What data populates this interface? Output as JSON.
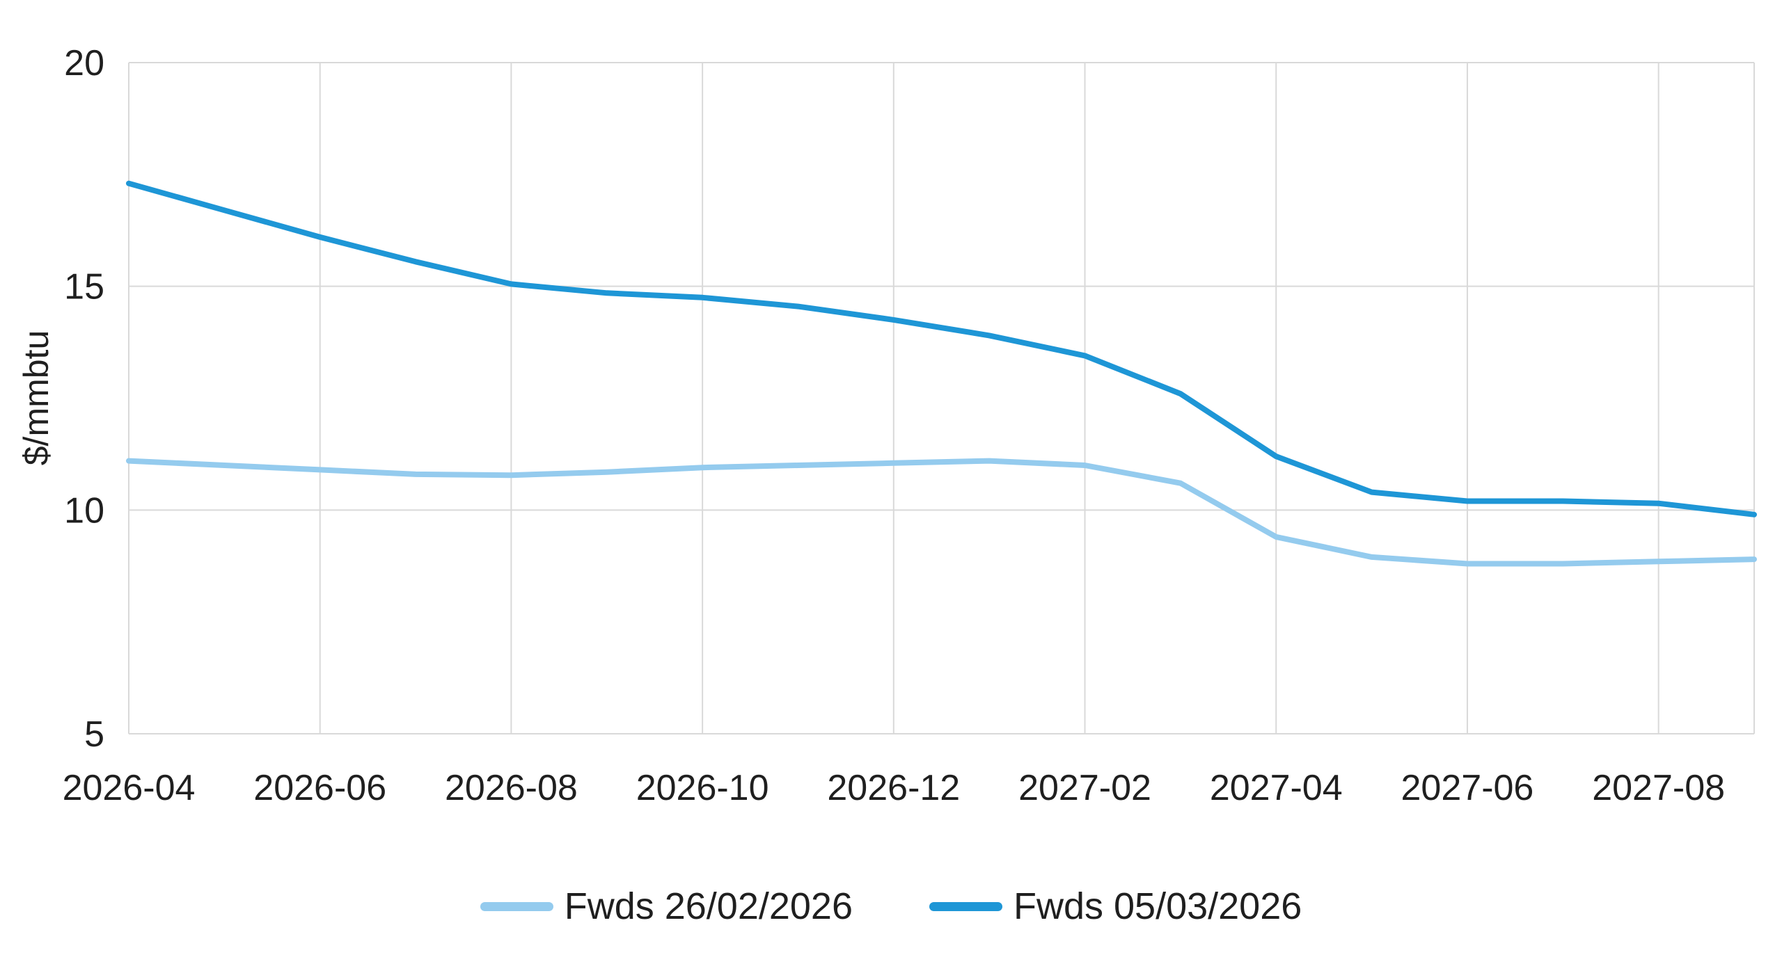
{
  "chart_data": {
    "type": "line",
    "title": "",
    "ylabel": "$/mmbtu",
    "xlabel": "",
    "ylim": [
      5,
      20
    ],
    "yticks": [
      5,
      10,
      15,
      20
    ],
    "grid": true,
    "legend_position": "bottom",
    "grid_color": "#d9d9d9",
    "text_color": "#1f1f1f",
    "background_color": "#ffffff",
    "x": [
      "2026-04",
      "2026-05",
      "2026-06",
      "2026-07",
      "2026-08",
      "2026-09",
      "2026-10",
      "2026-11",
      "2026-12",
      "2027-01",
      "2027-02",
      "2027-03",
      "2027-04",
      "2027-05",
      "2027-06",
      "2027-07",
      "2027-08",
      "2027-09"
    ],
    "xtick_indices": [
      0,
      2,
      4,
      6,
      8,
      10,
      12,
      14,
      16
    ],
    "series": [
      {
        "name": "Fwds 26/02/2026",
        "color": "#94cbee",
        "values": [
          11.1,
          11.0,
          10.9,
          10.8,
          10.78,
          10.85,
          10.95,
          11.0,
          11.05,
          11.1,
          11.0,
          10.6,
          9.4,
          8.95,
          8.8,
          8.8,
          8.85,
          8.9
        ]
      },
      {
        "name": "Fwds 05/03/2026",
        "color": "#1e96d6",
        "values": [
          17.3,
          16.7,
          16.1,
          15.55,
          15.05,
          14.85,
          14.75,
          14.55,
          14.25,
          13.9,
          13.45,
          12.6,
          11.2,
          10.4,
          10.2,
          10.2,
          10.15,
          9.9
        ]
      }
    ]
  }
}
